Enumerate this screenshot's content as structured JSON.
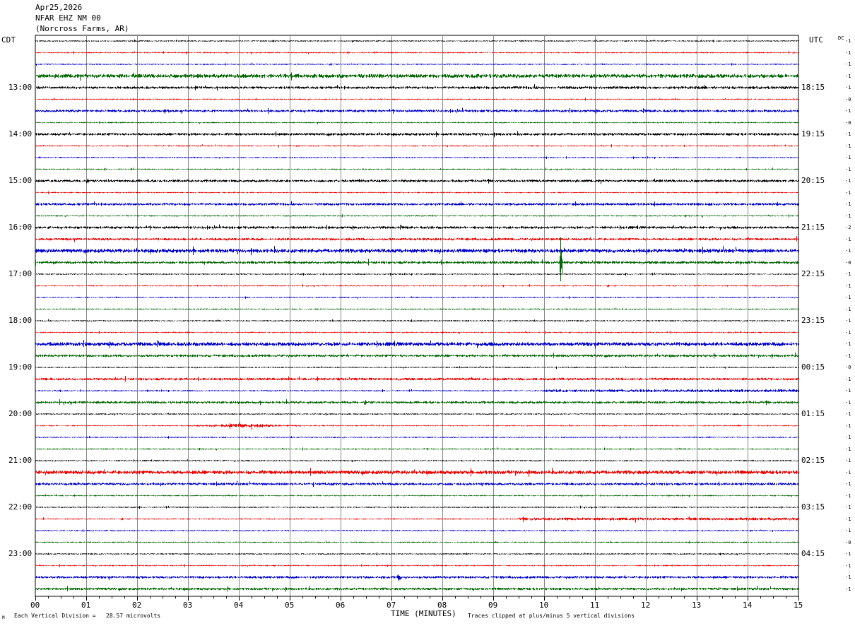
{
  "header": {
    "date": "Apr25,2026",
    "station": "NFAR EHZ NM 00",
    "location": "(Norcross Farms, AR)"
  },
  "left_zone_label": "CDT",
  "right_zone_label": "UTC",
  "dc_label": "DC",
  "footer": {
    "scale_note": "Each Vertical Division =   28.57 microvolts",
    "xlabel": "TIME (MINUTES)",
    "clip_note": "Traces clipped at plus/minus 5 vertical divisions",
    "corner_mark": "M"
  },
  "colors": {
    "trace_cycle": [
      "#000000",
      "#ee0000",
      "#0000cc",
      "#006600"
    ],
    "grid": "#888888"
  },
  "chart_data": {
    "type": "line",
    "xlabel": "TIME (MINUTES)",
    "xlim": [
      0,
      15
    ],
    "x_ticks": [
      "00",
      "01",
      "02",
      "03",
      "04",
      "05",
      "06",
      "07",
      "08",
      "09",
      "10",
      "11",
      "12",
      "13",
      "14",
      "15"
    ],
    "trace_count": 48,
    "trace_duration_minutes": 15,
    "left_hour_labels": [
      "13:00",
      "14:00",
      "15:00",
      "16:00",
      "17:00",
      "18:00",
      "19:00",
      "20:00",
      "21:00",
      "22:00",
      "23:00"
    ],
    "right_hour_labels": [
      "18:15",
      "19:15",
      "20:15",
      "21:15",
      "22:15",
      "23:15",
      "00:15",
      "01:15",
      "02:15",
      "03:15",
      "04:15"
    ],
    "dc_offsets": [
      "-1",
      "-1",
      "-1",
      "-1",
      "-1",
      "-0",
      "-1",
      "-0",
      "-1",
      "-1",
      "-1",
      "-1",
      "-1",
      "-1",
      "-1",
      "-1",
      "-2",
      "-1",
      "-1",
      "-0",
      "-1",
      "-1",
      "-1",
      "-1",
      "-1",
      "-1",
      "-1",
      "-1",
      "-0",
      "-1",
      "-1",
      "-1",
      "-1",
      "-1",
      "-1",
      "-1",
      "-1",
      "-1",
      "-1",
      "-1",
      "-1",
      "-1",
      "-1",
      "-0",
      "-1",
      "-1",
      "-1",
      "-1"
    ],
    "trace_amplitude_level": [
      1,
      1,
      1,
      3,
      2,
      1,
      2,
      1,
      2,
      1,
      1,
      1,
      2,
      1,
      2,
      1,
      2,
      2,
      3,
      2,
      1,
      1,
      1,
      1,
      1,
      1,
      3,
      2,
      1,
      2,
      1,
      2,
      1,
      1,
      1,
      1,
      1,
      3,
      2,
      1,
      1,
      1,
      1,
      1,
      1,
      1,
      2,
      2
    ],
    "events": [
      {
        "trace": 4,
        "start_min": 8.5,
        "end_min": 15,
        "amplitude": 2
      },
      {
        "trace": 19,
        "start_min": 4.2,
        "end_min": 15,
        "amplitude": 2
      },
      {
        "trace": 19,
        "start_min": 10.3,
        "end_min": 10.35,
        "amplitude": 18
      },
      {
        "trace": 30,
        "start_min": 10.0,
        "end_min": 15,
        "amplitude": 2
      },
      {
        "trace": 33,
        "start_min": 3.0,
        "end_min": 5.2,
        "amplitude": 3
      },
      {
        "trace": 41,
        "start_min": 9.5,
        "end_min": 15,
        "amplitude": 2
      },
      {
        "trace": 46,
        "start_min": 7.1,
        "end_min": 7.2,
        "amplitude": 7
      },
      {
        "trace": 47,
        "start_min": 0,
        "end_min": 2.5,
        "amplitude": 2
      }
    ]
  }
}
